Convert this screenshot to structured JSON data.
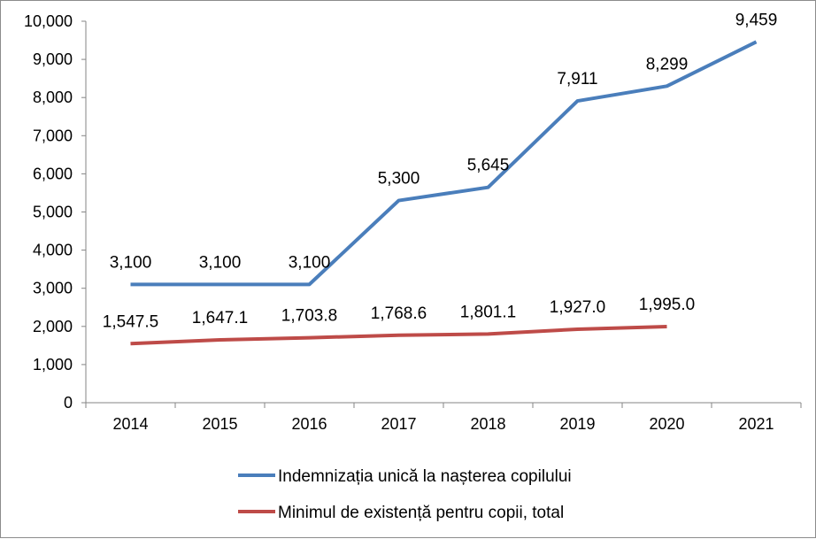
{
  "chart_data": {
    "type": "line",
    "title": "",
    "xlabel": "",
    "ylabel": "",
    "ylim": [
      0,
      10000
    ],
    "yticks": [
      0,
      1000,
      2000,
      3000,
      4000,
      5000,
      6000,
      7000,
      8000,
      9000,
      10000
    ],
    "ytick_labels": [
      "0",
      "1,000",
      "2,000",
      "3,000",
      "4,000",
      "5,000",
      "6,000",
      "7,000",
      "8,000",
      "9,000",
      "10,000"
    ],
    "categories": [
      "2014",
      "2015",
      "2016",
      "2017",
      "2018",
      "2019",
      "2020",
      "2021"
    ],
    "grid": false,
    "legend_position": "bottom",
    "series": [
      {
        "name": "Indemnizația unică la nașterea copilului",
        "color": "#4a7ebb",
        "values": [
          3100,
          3100,
          3100,
          5300,
          5645,
          7911,
          8299,
          9459
        ],
        "labels": [
          "3,100",
          "3,100",
          "3,100",
          "5,300",
          "5,645",
          "7,911",
          "8,299",
          "9,459"
        ]
      },
      {
        "name": "Minimul de existență pentru copii, total",
        "color": "#be4b48",
        "values": [
          1547.5,
          1647.1,
          1703.8,
          1768.6,
          1801.1,
          1927.0,
          1995.0,
          null
        ],
        "labels": [
          "1,547.5",
          "1,647.1",
          "1,703.8",
          "1,768.6",
          "1,801.1",
          "1,927.0",
          "1,995.0",
          null
        ]
      }
    ]
  }
}
